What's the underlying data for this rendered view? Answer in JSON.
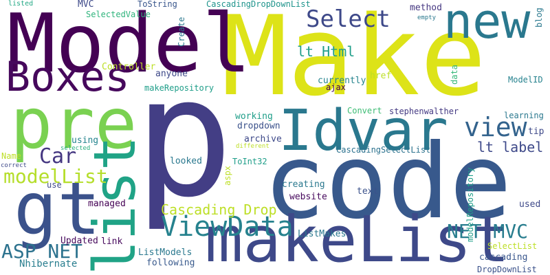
{
  "words": [
    {
      "text": "Make",
      "color": "#dde318"
    },
    {
      "text": "p",
      "color": "#433e85"
    },
    {
      "text": "code",
      "color": "#38598c"
    },
    {
      "text": "Model",
      "color": "#440154"
    },
    {
      "text": "new",
      "color": "#2a788e"
    },
    {
      "text": "pre",
      "color": "#7ad151"
    },
    {
      "text": "Boxes",
      "color": "#46085c"
    },
    {
      "text": "Idvar",
      "color": "#2a788e"
    },
    {
      "text": "gt",
      "color": "#3b528b"
    },
    {
      "text": "list",
      "color": "#20a386"
    },
    {
      "text": "makeList",
      "color": "#3e4989"
    },
    {
      "text": "view",
      "color": "#33638d"
    },
    {
      "text": "Select",
      "color": "#3e4989"
    },
    {
      "text": "ViewData",
      "color": "#26828e"
    },
    {
      "text": "Car",
      "color": "#453781"
    },
    {
      "text": "modelList",
      "color": "#b5de2b"
    },
    {
      "text": "ASP NET",
      "color": "#2c728e"
    },
    {
      "text": "NET MVC",
      "color": "#287d8e"
    },
    {
      "text": "Cascading Drop",
      "color": "#bddf26"
    },
    {
      "text": "lt Html",
      "color": "#1f9e89"
    },
    {
      "text": "lt label",
      "color": "#3e4989"
    },
    {
      "text": "DropDownList",
      "color": "#3b528b"
    },
    {
      "text": "SelectedValue",
      "color": "#2fb47c"
    },
    {
      "text": "ToString",
      "color": "#39568c"
    },
    {
      "text": "CascadingDropDownList",
      "color": "#1f948c"
    },
    {
      "text": "listed",
      "color": "#22a884"
    },
    {
      "text": "MVC",
      "color": "#3e4989"
    },
    {
      "text": "currently",
      "color": "#25848e"
    },
    {
      "text": "method",
      "color": "#453781"
    },
    {
      "text": "empty",
      "color": "#2a788e"
    },
    {
      "text": "blog",
      "color": "#2a788e"
    },
    {
      "text": "Controller",
      "color": "#bddf26"
    },
    {
      "text": "anyone",
      "color": "#3e4989"
    },
    {
      "text": "Create",
      "color": "#2a788e"
    },
    {
      "text": "makeRepository",
      "color": "#1f9e89"
    },
    {
      "text": "ajax",
      "color": "#440154"
    },
    {
      "text": "href",
      "color": "#bddf26"
    },
    {
      "text": "data",
      "color": "#35b779"
    },
    {
      "text": "ModelID",
      "color": "#26828e"
    },
    {
      "text": "Convert",
      "color": "#3dbc74"
    },
    {
      "text": "stephenwalther",
      "color": "#443a83"
    },
    {
      "text": "learning",
      "color": "#2a788e"
    },
    {
      "text": "working",
      "color": "#1f9e89"
    },
    {
      "text": "dropdown",
      "color": "#3b528b"
    },
    {
      "text": "archive",
      "color": "#3e4989"
    },
    {
      "text": "tip",
      "color": "#3e4989"
    },
    {
      "text": "using",
      "color": "#25848e"
    },
    {
      "text": "CascadingSelectList",
      "color": "#2c728e"
    },
    {
      "text": "Name",
      "color": "#bddf26"
    },
    {
      "text": "selected",
      "color": "#29af7f"
    },
    {
      "text": "different",
      "color": "#bddf26"
    },
    {
      "text": "looked",
      "color": "#2a788e"
    },
    {
      "text": "ToInt32",
      "color": "#1f9e89"
    },
    {
      "text": "modelRepository",
      "color": "#1f9e89"
    },
    {
      "text": "correct",
      "color": "#3e4989"
    },
    {
      "text": "use",
      "color": "#3e4989"
    },
    {
      "text": "creating",
      "color": "#2a788e"
    },
    {
      "text": "text",
      "color": "#3b528b"
    },
    {
      "text": "aspx",
      "color": "#bddf26"
    },
    {
      "text": "website",
      "color": "#46085c"
    },
    {
      "text": "managed",
      "color": "#440154"
    },
    {
      "text": "used",
      "color": "#3e4989"
    },
    {
      "text": "Updated",
      "color": "#46085c"
    },
    {
      "text": "link",
      "color": "#46085c"
    },
    {
      "text": "ListMakes",
      "color": "#2a788e"
    },
    {
      "text": "cascading",
      "color": "#39568c"
    },
    {
      "text": "SelectList",
      "color": "#bddf26"
    },
    {
      "text": "ListModels",
      "color": "#2a788e"
    },
    {
      "text": "following",
      "color": "#38598c"
    },
    {
      "text": "Nhibernate",
      "color": "#287d8e"
    }
  ]
}
